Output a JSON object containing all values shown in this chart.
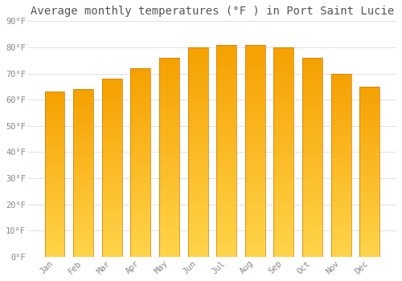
{
  "title": "Average monthly temperatures (°F ) in Port Saint Lucie",
  "months": [
    "Jan",
    "Feb",
    "Mar",
    "Apr",
    "May",
    "Jun",
    "Jul",
    "Aug",
    "Sep",
    "Oct",
    "Nov",
    "Dec"
  ],
  "values": [
    63,
    64,
    68,
    72,
    76,
    80,
    81,
    81,
    80,
    76,
    70,
    65
  ],
  "bar_color_top": "#F5A000",
  "bar_color_bottom": "#FFD44A",
  "bar_edge_color": "#CC7800",
  "background_color": "#ffffff",
  "grid_color": "#e0e0e0",
  "text_color": "#888888",
  "title_color": "#555555",
  "ylim": [
    0,
    90
  ],
  "yticks": [
    0,
    10,
    20,
    30,
    40,
    50,
    60,
    70,
    80,
    90
  ],
  "ytick_labels": [
    "0°F",
    "10°F",
    "20°F",
    "30°F",
    "40°F",
    "50°F",
    "60°F",
    "70°F",
    "80°F",
    "90°F"
  ],
  "title_fontsize": 10,
  "tick_fontsize": 7.5,
  "font_family": "monospace",
  "bar_width": 0.7,
  "n_grad": 200
}
